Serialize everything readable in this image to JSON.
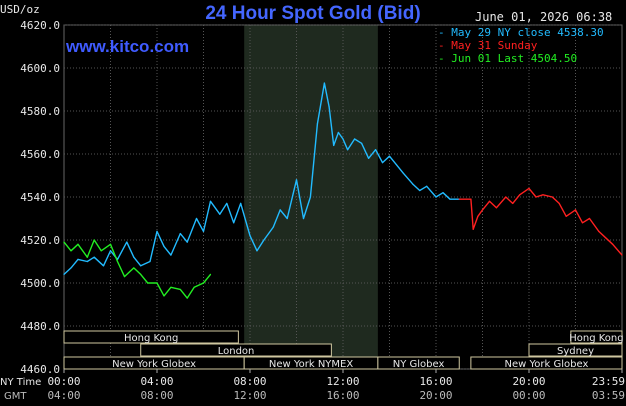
{
  "header": {
    "title": "24 Hour Spot Gold (Bid)",
    "timestamp": "June 01, 2026 06:38",
    "units": "USD/oz",
    "site": "www.kitco.com"
  },
  "legend": [
    {
      "label": "- May 29 NY close 4538.30",
      "color": "#22bbff"
    },
    {
      "label": "- May 31 Sunday",
      "color": "#ff2020"
    },
    {
      "label": "- Jun 01 Last 4504.50",
      "color": "#22ee22"
    }
  ],
  "axis_row_labels": {
    "ny": "NY Time",
    "gmt": "GMT"
  },
  "sessions": {
    "row1": [
      {
        "label": "Hong Kong",
        "x0": 0,
        "x1": 7.5
      },
      {
        "label": "Hong Kong",
        "x0": 21.8,
        "x1": 24
      }
    ],
    "row2": [
      {
        "label": "London",
        "x0": 3.3,
        "x1": 11.5
      },
      {
        "label": "Sydney",
        "x0": 20.0,
        "x1": 24
      }
    ],
    "row3": [
      {
        "label": "New York Globex",
        "x0": 0,
        "x1": 7.75
      },
      {
        "label": "New York NYMEX",
        "x0": 7.75,
        "x1": 13.5
      },
      {
        "label": "NY Globex",
        "x0": 13.5,
        "x1": 17.0
      },
      {
        "label": "New York Globex",
        "x0": 17.5,
        "x1": 24
      }
    ]
  },
  "chart_data": {
    "type": "line",
    "title": "24 Hour Spot Gold (Bid)",
    "ylabel": "USD/oz",
    "ylim": [
      4460,
      4620
    ],
    "yticks": [
      "4460.0",
      "4480.0",
      "4500.0",
      "4520.0",
      "4540.0",
      "4560.0",
      "4580.0",
      "4600.0",
      "4620.0"
    ],
    "xlim": [
      0,
      24
    ],
    "xticks_ny": [
      "00:00",
      "04:00",
      "08:00",
      "12:00",
      "16:00",
      "20:00",
      "23:59"
    ],
    "xticks_gmt": [
      "04:00",
      "08:00",
      "12:00",
      "16:00",
      "20:00",
      "00:00",
      "03:59"
    ],
    "highlight_range": [
      7.75,
      13.5
    ],
    "grid": true,
    "series": [
      {
        "name": "May 29 NY close 4538.30",
        "color": "#22bbff",
        "x": [
          0,
          0.3,
          0.6,
          1.0,
          1.3,
          1.7,
          2.0,
          2.3,
          2.7,
          3.0,
          3.3,
          3.7,
          4.0,
          4.3,
          4.6,
          5.0,
          5.3,
          5.7,
          6.0,
          6.3,
          6.7,
          7.0,
          7.3,
          7.6,
          8.0,
          8.3,
          8.6,
          9.0,
          9.3,
          9.6,
          10.0,
          10.3,
          10.6,
          10.9,
          11.2,
          11.4,
          11.6,
          11.8,
          12.0,
          12.2,
          12.5,
          12.8,
          13.1,
          13.4,
          13.7,
          14.0,
          14.3,
          14.6,
          15.0,
          15.3,
          15.6,
          16.0,
          16.3,
          16.6,
          17.0
        ],
        "y": [
          4504,
          4507,
          4511,
          4510,
          4512,
          4508,
          4515,
          4511,
          4519,
          4512,
          4508,
          4510,
          4524,
          4517,
          4513,
          4523,
          4519,
          4530,
          4524,
          4538,
          4532,
          4537,
          4528,
          4537,
          4522,
          4515,
          4520,
          4526,
          4534,
          4530,
          4548,
          4530,
          4540,
          4574,
          4593,
          4582,
          4564,
          4570,
          4567,
          4562,
          4567,
          4565,
          4558,
          4562,
          4556,
          4559,
          4555,
          4551,
          4546,
          4543,
          4545,
          4540,
          4542,
          4539,
          4539
        ],
        "tension": true
      },
      {
        "name": "May 31 Sunday",
        "color": "#ff2020",
        "x": [
          17.0,
          17.5,
          17.6,
          17.8,
          18.0,
          18.3,
          18.6,
          19.0,
          19.3,
          19.6,
          20.0,
          20.3,
          20.6,
          21.0,
          21.3,
          21.6,
          22.0,
          22.3,
          22.6,
          23.0,
          23.3,
          23.6,
          24.0
        ],
        "y": [
          4539,
          4539,
          4525,
          4531,
          4534,
          4538,
          4535,
          4540,
          4537,
          4541,
          4544,
          4540,
          4541,
          4540,
          4537,
          4531,
          4534,
          4528,
          4530,
          4524,
          4521,
          4518,
          4513
        ]
      },
      {
        "name": "Jun 01 Last 4504.50",
        "color": "#22ee22",
        "x": [
          0,
          0.3,
          0.6,
          1.0,
          1.3,
          1.6,
          2.0,
          2.3,
          2.6,
          3.0,
          3.3,
          3.6,
          4.0,
          4.3,
          4.6,
          5.0,
          5.3,
          5.6,
          6.0,
          6.3
        ],
        "y": [
          4519,
          4515,
          4518,
          4512,
          4520,
          4515,
          4518,
          4510,
          4503,
          4507,
          4504,
          4500,
          4500,
          4494,
          4498,
          4497,
          4493,
          4498,
          4500,
          4504
        ]
      }
    ]
  }
}
